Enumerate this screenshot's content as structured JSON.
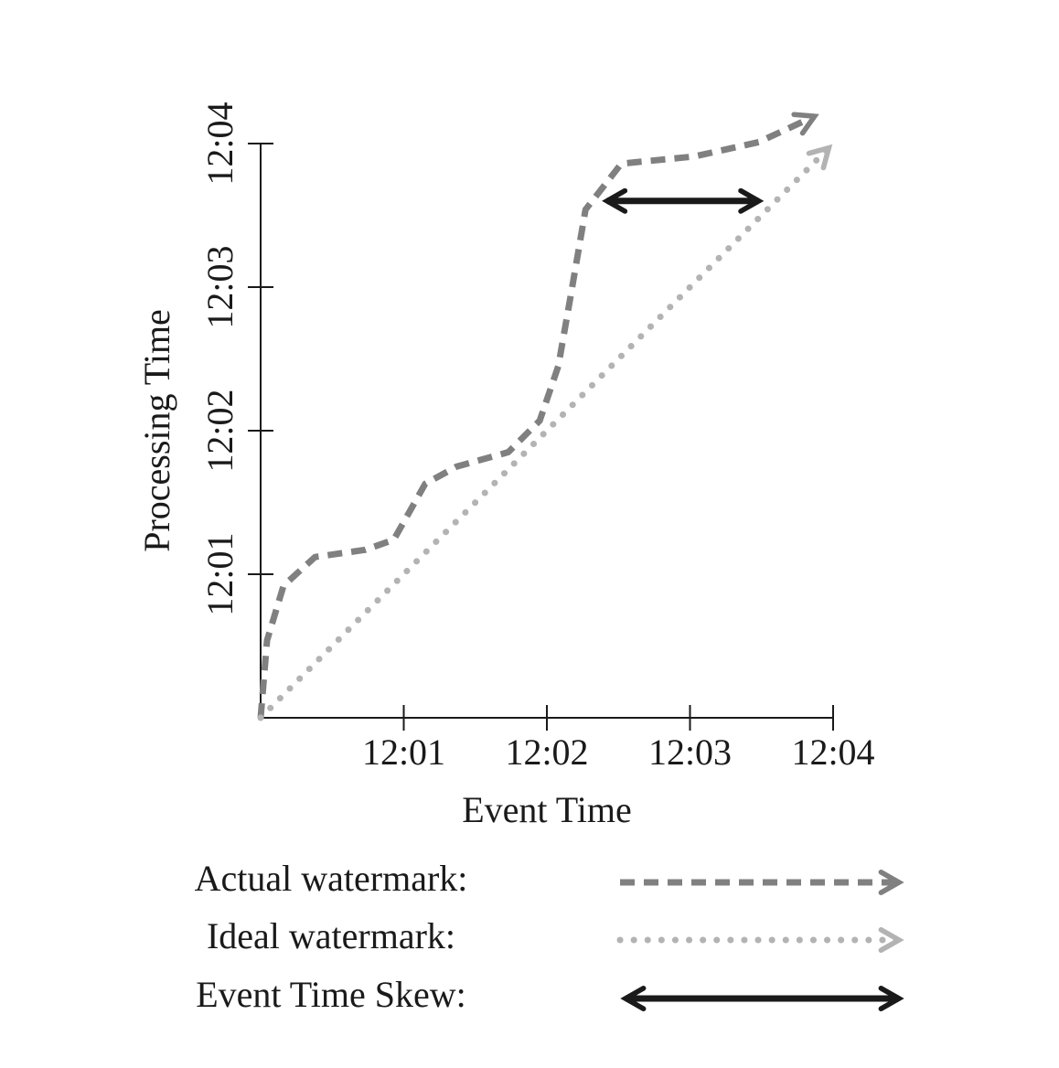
{
  "chart_data": {
    "type": "line",
    "x_label": "Event Time",
    "y_label": "Processing Time",
    "xlim": [
      0,
      4
    ],
    "ylim": [
      0,
      4
    ],
    "xticks": [
      {
        "value": 1,
        "label": "12:01"
      },
      {
        "value": 2,
        "label": "12:02"
      },
      {
        "value": 3,
        "label": "12:03"
      },
      {
        "value": 4,
        "label": "12:04"
      }
    ],
    "yticks": [
      {
        "value": 1,
        "label": "12:01"
      },
      {
        "value": 2,
        "label": "12:02"
      },
      {
        "value": 3,
        "label": "12:03"
      },
      {
        "value": 4,
        "label": "12:04"
      }
    ],
    "grid": false,
    "series": [
      {
        "name": "Actual watermark:",
        "color": "#808080",
        "style": "dashed",
        "x": [
          0,
          0.045,
          0.16,
          0.38,
          0.73,
          0.93,
          1.15,
          1.37,
          1.73,
          1.95,
          2.08,
          2.17,
          2.27,
          2.52,
          3.03,
          3.48,
          3.87
        ],
        "values": [
          0,
          0.54,
          0.92,
          1.12,
          1.17,
          1.24,
          1.63,
          1.75,
          1.85,
          2.07,
          2.45,
          2.96,
          3.54,
          3.86,
          3.91,
          4.01,
          4.19
        ]
      },
      {
        "name": "Ideal watermark:",
        "color": "#b3b3b3",
        "style": "dotted",
        "x": [
          0,
          1,
          2,
          3,
          3.97
        ],
        "values": [
          0,
          1,
          2,
          3,
          3.97
        ]
      }
    ],
    "skew": {
      "name": "Event Time Skew:",
      "color": "#1a1a1a",
      "y": 3.6,
      "x_start": 2.42,
      "x_end": 3.48
    }
  }
}
